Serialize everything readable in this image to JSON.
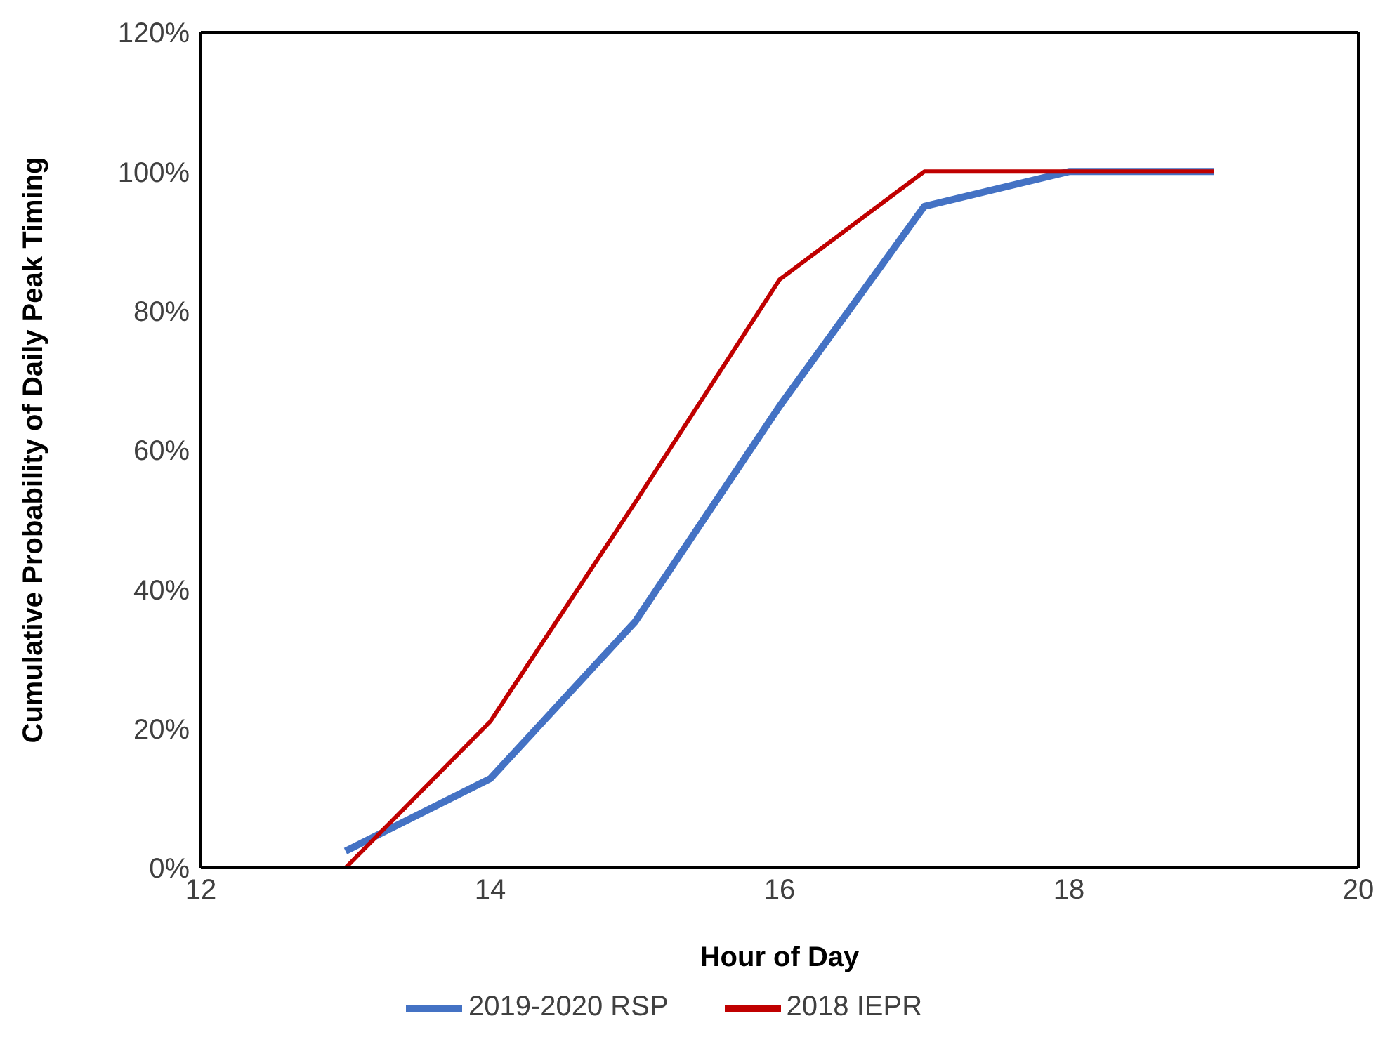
{
  "chart_data": {
    "type": "line",
    "xlabel": "Hour of Day",
    "ylabel": "Cumulative Probability of Daily Peak Timing",
    "x": [
      13,
      14,
      15,
      16,
      17,
      18,
      19
    ],
    "series": [
      {
        "name": "2019-2020 RSP",
        "color": "#4472c4",
        "values": [
          2.4,
          12.8,
          35.3,
          66.3,
          95,
          100,
          100
        ]
      },
      {
        "name": "2018 IEPR",
        "color": "#c00000",
        "values": [
          0,
          21,
          52.4,
          84.5,
          100,
          100,
          100
        ]
      }
    ],
    "xlim": [
      12,
      20
    ],
    "xticks": [
      12,
      14,
      16,
      18,
      20
    ],
    "ylim": [
      0,
      120
    ],
    "yticks": [
      {
        "value": 0,
        "label": "0%"
      },
      {
        "value": 20,
        "label": "20%"
      },
      {
        "value": 40,
        "label": "40%"
      },
      {
        "value": 60,
        "label": "60%"
      },
      {
        "value": 80,
        "label": "80%"
      },
      {
        "value": 100,
        "label": "100%"
      },
      {
        "value": 120,
        "label": "120%"
      }
    ],
    "grid": false,
    "legend": "bottom",
    "marker": "none",
    "line_style": "solid"
  }
}
